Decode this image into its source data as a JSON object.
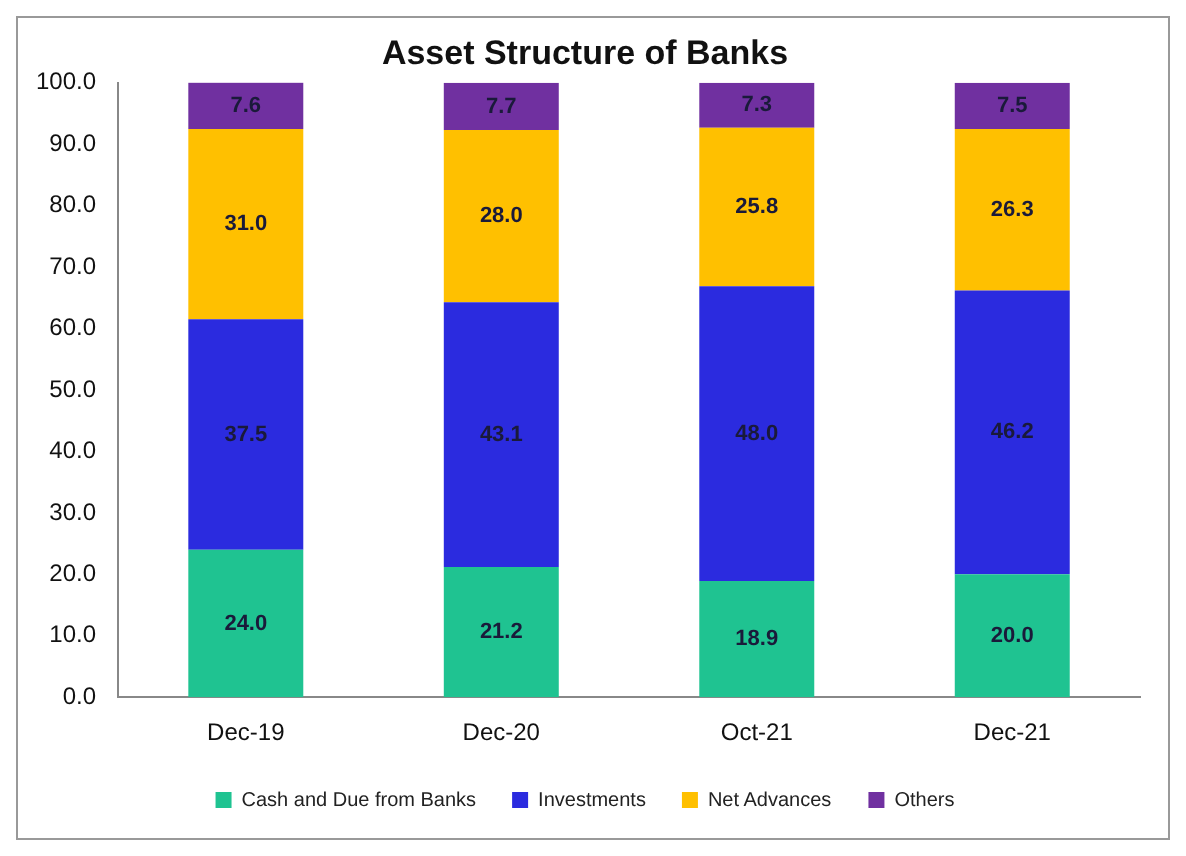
{
  "chart_data": {
    "type": "bar",
    "title": "Asset Structure of Banks",
    "categories": [
      "Dec-19",
      "Dec-20",
      "Oct-21",
      "Dec-21"
    ],
    "stacked": true,
    "series": [
      {
        "name": "Cash and Due from Banks",
        "color": "#1fc391",
        "values": [
          24.0,
          21.2,
          18.9,
          20.0
        ],
        "value_labels": [
          "24.0",
          "21.2",
          "18.9",
          "20.0"
        ]
      },
      {
        "name": "Investments",
        "color": "#2b2bdf",
        "values": [
          37.5,
          43.1,
          48.0,
          46.2
        ],
        "value_labels": [
          "37.5",
          "43.1",
          "48.0",
          "46.2"
        ]
      },
      {
        "name": "Net Advances",
        "color": "#ffc000",
        "values": [
          31.0,
          28.0,
          25.8,
          26.3
        ],
        "value_labels": [
          "31.0",
          "28.0",
          "25.8",
          "26.3"
        ]
      },
      {
        "name": "Others",
        "color": "#7030a0",
        "values": [
          7.6,
          7.7,
          7.3,
          7.5
        ],
        "value_labels": [
          "7.6",
          "7.7",
          "7.3",
          "7.5"
        ]
      }
    ],
    "ylim": [
      0,
      100
    ],
    "yticks": [
      {
        "value": 0,
        "label": "0.0"
      },
      {
        "value": 10,
        "label": "10.0"
      },
      {
        "value": 20,
        "label": "20.0"
      },
      {
        "value": 30,
        "label": "30.0"
      },
      {
        "value": 40,
        "label": "40.0"
      },
      {
        "value": 50,
        "label": "50.0"
      },
      {
        "value": 60,
        "label": "60.0"
      },
      {
        "value": 70,
        "label": "70.0"
      },
      {
        "value": 80,
        "label": "80.0"
      },
      {
        "value": 90,
        "label": "90.0"
      },
      {
        "value": 100,
        "label": "100.0"
      }
    ],
    "grid": false,
    "legend": "bottom"
  }
}
